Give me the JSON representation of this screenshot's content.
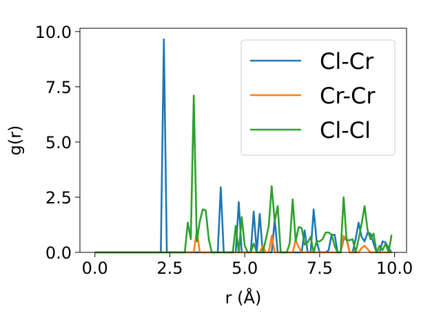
{
  "chart_data": {
    "type": "line",
    "xlabel": "r (Å)",
    "ylabel": "g(r)",
    "xlim": [
      -0.5,
      10.4
    ],
    "ylim": [
      0,
      10.15
    ],
    "xticks": [
      "0.0",
      "2.5",
      "5.0",
      "7.5",
      "10.0"
    ],
    "yticks": [
      "0.0",
      "2.5",
      "5.0",
      "7.5",
      "10.0"
    ],
    "legend_position": "top-right",
    "grid": false,
    "series": [
      {
        "name": "Cl-Cr",
        "color": "#1f77b4",
        "x": [
          0,
          2.2,
          2.3,
          2.4,
          4.1,
          4.2,
          4.3,
          4.7,
          4.8,
          4.9,
          5.2,
          5.3,
          5.4,
          5.5,
          5.6,
          5.9,
          6.0,
          6.1,
          6.9,
          7.0,
          7.1,
          7.2,
          7.3,
          7.4,
          7.5,
          7.7,
          7.8,
          7.9,
          8.0,
          8.1,
          8.2,
          8.3,
          8.4,
          8.5,
          8.6,
          8.7,
          8.8,
          8.9,
          9.0,
          9.1,
          9.2,
          9.3,
          9.4,
          9.5,
          9.6,
          9.7,
          9.8,
          9.9
        ],
        "y": [
          0,
          0,
          9.65,
          0,
          0,
          2.95,
          0,
          0,
          2.28,
          0,
          0,
          1.85,
          0,
          1.75,
          0,
          0,
          1.5,
          0,
          0,
          1.0,
          0,
          0,
          1.95,
          0.5,
          0,
          0,
          0.1,
          0.8,
          0.8,
          0,
          0,
          0.6,
          0.65,
          0,
          0,
          0.6,
          1.35,
          0.7,
          0.5,
          0.9,
          0.85,
          0.4,
          0,
          0,
          0.5,
          0.45,
          0.2,
          0
        ]
      },
      {
        "name": "Cr-Cr",
        "color": "#ff7f0e",
        "x": [
          0,
          3.3,
          3.4,
          3.5,
          5.5,
          5.6,
          5.7,
          5.8,
          5.9,
          6.0,
          6.6,
          6.7,
          6.8,
          6.9,
          8.2,
          8.3,
          8.4,
          8.5,
          8.8,
          8.9,
          9.0,
          9.1,
          9.2,
          9.9
        ],
        "y": [
          0,
          0,
          1.0,
          0,
          0,
          0.3,
          0,
          0,
          0.75,
          0,
          0,
          0.55,
          0.25,
          0,
          0,
          0.75,
          0.55,
          0,
          0,
          0.2,
          0.3,
          0.15,
          0,
          0
        ]
      },
      {
        "name": "Cl-Cl",
        "color": "#2ca02c",
        "x": [
          0,
          3.0,
          3.1,
          3.2,
          3.3,
          3.4,
          3.5,
          3.6,
          3.7,
          3.8,
          3.9,
          4.6,
          4.7,
          4.8,
          4.9,
          5.0,
          5.1,
          5.2,
          5.3,
          5.4,
          5.5,
          5.6,
          5.7,
          5.8,
          5.9,
          6.0,
          6.1,
          6.2,
          6.3,
          6.4,
          6.5,
          6.6,
          6.7,
          6.8,
          6.9,
          7.0,
          7.1,
          7.2,
          7.3,
          7.4,
          7.5,
          7.6,
          7.7,
          7.8,
          7.9,
          8.0,
          8.1,
          8.2,
          8.3,
          8.4,
          8.5,
          8.6,
          8.7,
          8.8,
          8.9,
          9.0,
          9.1,
          9.2,
          9.3,
          9.4,
          9.5,
          9.6,
          9.7,
          9.8,
          9.9
        ],
        "y": [
          0,
          0,
          1.35,
          0.6,
          7.1,
          0.5,
          1.4,
          1.95,
          1.9,
          0.6,
          0,
          0,
          1.2,
          0,
          1.6,
          0.3,
          0,
          0,
          0.4,
          0,
          0,
          0,
          0.55,
          1.2,
          3.0,
          1.4,
          2.1,
          0,
          0,
          0,
          0.4,
          2.4,
          0.5,
          1.15,
          1.1,
          0.35,
          0.45,
          0.7,
          0,
          0.5,
          0.5,
          0.6,
          0.9,
          0.9,
          0.8,
          0.3,
          0,
          0,
          2.5,
          0.55,
          0.55,
          0.6,
          0,
          0.6,
          1.3,
          2.1,
          1.0,
          0.6,
          0.85,
          0,
          0.3,
          0.1,
          0.4,
          0,
          0.8
        ]
      }
    ]
  }
}
